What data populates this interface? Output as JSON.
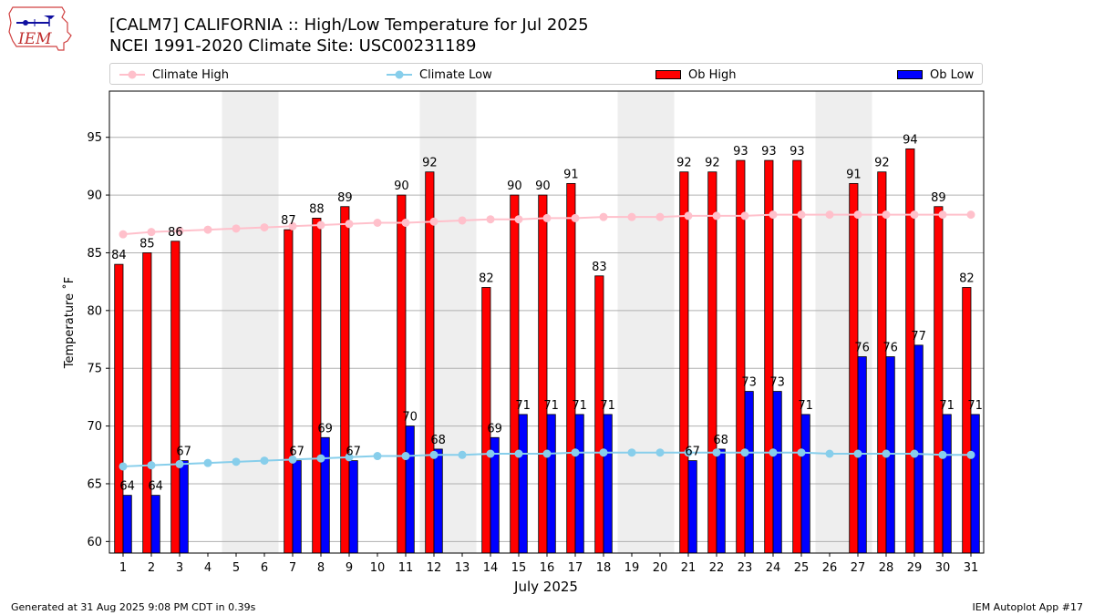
{
  "chart_data": {
    "type": "bar",
    "title": "[CALM7] CALIFORNIA :: High/Low Temperature for Jul 2025",
    "subtitle": "NCEI 1991-2020 Climate Site: USC00231189",
    "xlabel": "July 2025",
    "ylabel": "Temperature ˚F",
    "ylim": [
      59,
      99
    ],
    "yticks": [
      60,
      65,
      70,
      75,
      80,
      85,
      90,
      95
    ],
    "grid": true,
    "categories": [
      "1",
      "2",
      "3",
      "4",
      "5",
      "6",
      "7",
      "8",
      "9",
      "10",
      "11",
      "12",
      "13",
      "14",
      "15",
      "16",
      "17",
      "18",
      "19",
      "20",
      "21",
      "22",
      "23",
      "24",
      "25",
      "26",
      "27",
      "28",
      "29",
      "30",
      "31"
    ],
    "weekend_days": [
      5,
      6,
      12,
      13,
      19,
      20,
      26,
      27
    ],
    "series": [
      {
        "name": "Ob High",
        "kind": "bar",
        "color": "#ff0000",
        "values": [
          84,
          85,
          86,
          null,
          null,
          null,
          87,
          88,
          89,
          null,
          90,
          92,
          null,
          82,
          90,
          90,
          91,
          83,
          null,
          null,
          92,
          92,
          93,
          93,
          93,
          null,
          91,
          92,
          94,
          89,
          82
        ]
      },
      {
        "name": "Ob Low",
        "kind": "bar",
        "color": "#0000ff",
        "values": [
          64,
          64,
          67,
          null,
          null,
          null,
          67,
          69,
          67,
          null,
          70,
          68,
          null,
          69,
          71,
          71,
          71,
          71,
          null,
          null,
          67,
          68,
          73,
          73,
          71,
          null,
          76,
          76,
          77,
          71,
          71
        ]
      },
      {
        "name": "Climate High",
        "kind": "line",
        "color": "#ffc0cb",
        "values": [
          86.6,
          86.8,
          86.9,
          87.0,
          87.1,
          87.2,
          87.3,
          87.4,
          87.5,
          87.6,
          87.6,
          87.7,
          87.8,
          87.9,
          87.9,
          88.0,
          88.0,
          88.1,
          88.1,
          88.1,
          88.2,
          88.2,
          88.2,
          88.3,
          88.3,
          88.3,
          88.3,
          88.3,
          88.3,
          88.3,
          88.3
        ]
      },
      {
        "name": "Climate Low",
        "kind": "line",
        "color": "#87ceeb",
        "values": [
          66.5,
          66.6,
          66.7,
          66.8,
          66.9,
          67.0,
          67.1,
          67.2,
          67.3,
          67.4,
          67.4,
          67.5,
          67.5,
          67.6,
          67.6,
          67.6,
          67.7,
          67.7,
          67.7,
          67.7,
          67.7,
          67.7,
          67.7,
          67.7,
          67.7,
          67.6,
          67.6,
          67.6,
          67.6,
          67.5,
          67.5
        ]
      }
    ],
    "legend": [
      "Climate High",
      "Climate Low",
      "Ob High",
      "Ob Low"
    ],
    "legend_position": "top"
  },
  "logo": {
    "text": "IEM"
  },
  "footer": {
    "generated": "Generated at 31 Aug 2025 9:08 PM CDT in 0.39s",
    "app": "IEM Autoplot App #17"
  }
}
